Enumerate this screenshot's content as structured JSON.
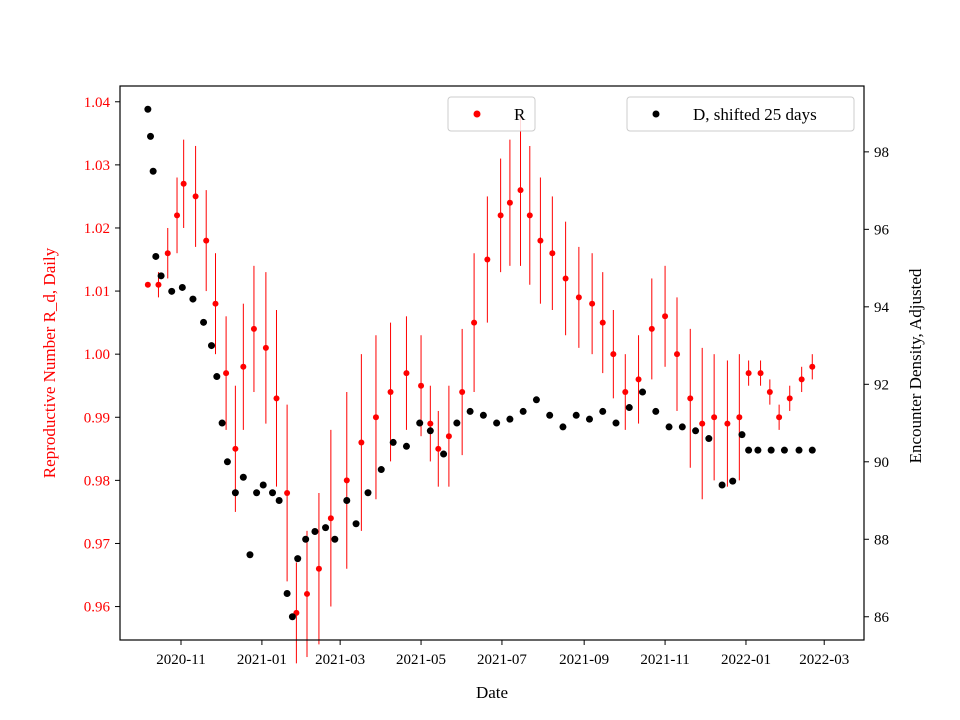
{
  "chart_data": {
    "type": "scatter",
    "xlabel": "Date",
    "x_ticks": [
      "2020-11",
      "2021-01",
      "2021-03",
      "2021-05",
      "2021-07",
      "2021-09",
      "2021-11",
      "2022-01",
      "2022-03"
    ],
    "xlim": [
      "2020-09-16",
      "2022-03-31"
    ],
    "left_axis": {
      "label": "Reproductive Number R_d, Daily",
      "color": "#ff0000",
      "ylim": [
        0.9547,
        1.0425
      ],
      "ticks": [
        "0.96",
        "0.97",
        "0.98",
        "0.99",
        "1.00",
        "1.01",
        "1.02",
        "1.03",
        "1.04"
      ]
    },
    "right_axis": {
      "label": "Encounter Density, Adjusted",
      "color": "#000000",
      "ylim": [
        85.4,
        99.7
      ],
      "ticks": [
        "86",
        "88",
        "90",
        "92",
        "94",
        "96",
        "98"
      ]
    },
    "series": [
      {
        "name": "R",
        "axis": "left",
        "color": "#ff0000",
        "marker": "point with vertical error bars",
        "x": [
          "2020-10-07",
          "2020-10-15",
          "2020-10-22",
          "2020-10-29",
          "2020-11-03",
          "2020-11-12",
          "2020-11-20",
          "2020-11-27",
          "2020-12-05",
          "2020-12-12",
          "2020-12-18",
          "2020-12-26",
          "2021-01-04",
          "2021-01-12",
          "2021-01-20",
          "2021-01-27",
          "2021-02-04",
          "2021-02-13",
          "2021-02-22",
          "2021-03-06",
          "2021-03-17",
          "2021-03-28",
          "2021-04-08",
          "2021-04-20",
          "2021-05-01",
          "2021-05-08",
          "2021-05-14",
          "2021-05-22",
          "2021-06-01",
          "2021-06-10",
          "2021-06-20",
          "2021-06-30",
          "2021-07-07",
          "2021-07-15",
          "2021-07-22",
          "2021-07-30",
          "2021-08-08",
          "2021-08-18",
          "2021-08-28",
          "2021-09-07",
          "2021-09-15",
          "2021-09-23",
          "2021-10-02",
          "2021-10-12",
          "2021-10-22",
          "2021-11-01",
          "2021-11-10",
          "2021-11-20",
          "2021-11-29",
          "2021-12-08",
          "2021-12-18",
          "2021-12-27",
          "2022-01-03",
          "2022-01-12",
          "2022-01-19",
          "2022-01-26",
          "2022-02-03",
          "2022-02-12",
          "2022-02-20"
        ],
        "y": [
          1.011,
          1.011,
          1.016,
          1.022,
          1.027,
          1.025,
          1.018,
          1.008,
          0.997,
          0.985,
          0.998,
          1.004,
          1.001,
          0.993,
          0.978,
          0.959,
          0.962,
          0.966,
          0.974,
          0.98,
          0.986,
          0.99,
          0.994,
          0.997,
          0.995,
          0.989,
          0.985,
          0.987,
          0.994,
          1.005,
          1.015,
          1.022,
          1.024,
          1.026,
          1.022,
          1.018,
          1.016,
          1.012,
          1.009,
          1.008,
          1.005,
          1.0,
          0.994,
          0.996,
          1.004,
          1.006,
          1.0,
          0.993,
          0.989,
          0.99,
          0.989,
          0.99,
          0.997,
          0.997,
          0.994,
          0.99,
          0.993,
          0.996,
          0.998
        ],
        "error": [
          0.0,
          0.002,
          0.004,
          0.006,
          0.007,
          0.008,
          0.008,
          0.008,
          0.009,
          0.01,
          0.01,
          0.01,
          0.012,
          0.014,
          0.014,
          0.008,
          0.01,
          0.012,
          0.014,
          0.014,
          0.014,
          0.013,
          0.011,
          0.009,
          0.008,
          0.006,
          0.006,
          0.008,
          0.01,
          0.011,
          0.01,
          0.009,
          0.01,
          0.012,
          0.011,
          0.01,
          0.009,
          0.009,
          0.008,
          0.008,
          0.008,
          0.007,
          0.006,
          0.007,
          0.008,
          0.008,
          0.009,
          0.011,
          0.012,
          0.01,
          0.01,
          0.01,
          0.002,
          0.002,
          0.002,
          0.002,
          0.002,
          0.002,
          0.002
        ]
      },
      {
        "name": "D, shifted 25 days",
        "axis": "right",
        "color": "#000000",
        "marker": "point",
        "x": [
          "2020-10-07",
          "2020-10-09",
          "2020-10-11",
          "2020-10-13",
          "2020-10-17",
          "2020-10-25",
          "2020-11-02",
          "2020-11-10",
          "2020-11-18",
          "2020-11-24",
          "2020-11-28",
          "2020-12-02",
          "2020-12-06",
          "2020-12-12",
          "2020-12-18",
          "2020-12-23",
          "2020-12-28",
          "2021-01-02",
          "2021-01-09",
          "2021-01-14",
          "2021-01-20",
          "2021-01-24",
          "2021-01-28",
          "2021-02-03",
          "2021-02-10",
          "2021-02-18",
          "2021-02-25",
          "2021-03-06",
          "2021-03-13",
          "2021-03-22",
          "2021-04-01",
          "2021-04-10",
          "2021-04-20",
          "2021-04-30",
          "2021-05-08",
          "2021-05-18",
          "2021-05-28",
          "2021-06-07",
          "2021-06-17",
          "2021-06-27",
          "2021-07-07",
          "2021-07-17",
          "2021-07-27",
          "2021-08-06",
          "2021-08-16",
          "2021-08-26",
          "2021-09-05",
          "2021-09-15",
          "2021-09-25",
          "2021-10-05",
          "2021-10-15",
          "2021-10-25",
          "2021-11-04",
          "2021-11-14",
          "2021-11-24",
          "2021-12-04",
          "2021-12-14",
          "2021-12-22",
          "2021-12-29",
          "2022-01-03",
          "2022-01-10",
          "2022-01-20",
          "2022-01-30",
          "2022-02-10",
          "2022-02-20"
        ],
        "y": [
          99.1,
          98.4,
          97.5,
          95.3,
          94.8,
          94.4,
          94.5,
          94.2,
          93.6,
          93.0,
          92.2,
          91.0,
          90.0,
          89.2,
          89.6,
          87.6,
          89.2,
          89.4,
          89.2,
          89.0,
          86.6,
          86.0,
          87.5,
          88.0,
          88.2,
          88.3,
          88.0,
          89.0,
          88.4,
          89.2,
          89.8,
          90.5,
          90.4,
          91.0,
          90.8,
          90.2,
          91.0,
          91.3,
          91.2,
          91.0,
          91.1,
          91.3,
          91.6,
          91.2,
          90.9,
          91.2,
          91.1,
          91.3,
          91.0,
          91.4,
          91.8,
          91.3,
          90.9,
          90.9,
          90.8,
          90.6,
          89.4,
          89.5,
          90.7,
          90.3,
          90.3,
          90.3,
          90.3,
          90.3,
          90.3
        ]
      }
    ]
  }
}
